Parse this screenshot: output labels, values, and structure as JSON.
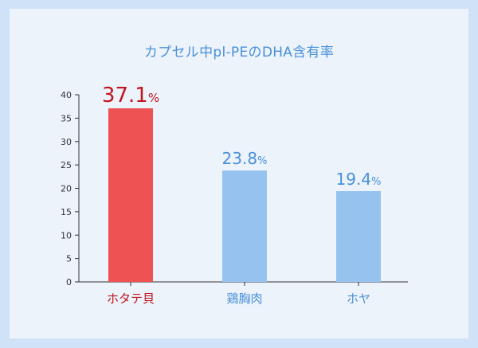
{
  "chart_data": {
    "type": "bar",
    "title": "カプセル中pl-PEのDHA含有率",
    "categories": [
      "ホタテ貝",
      "鶏胸肉",
      "ホヤ"
    ],
    "values": [
      37.1,
      23.8,
      19.4
    ],
    "value_labels": [
      "37.1",
      "23.8",
      "19.4"
    ],
    "value_unit": "%",
    "ylim": [
      0,
      40
    ],
    "yticks": [
      0,
      5,
      10,
      15,
      20,
      25,
      30,
      35,
      40
    ],
    "xlabel": "",
    "ylabel": "",
    "grid": false,
    "colors": {
      "highlight": "#ee5253",
      "normal": "#96c2f0",
      "highlight_label": "#c0141e",
      "normal_label": "#4a90d9",
      "axis": "#333333"
    },
    "highlight_index": 0
  }
}
